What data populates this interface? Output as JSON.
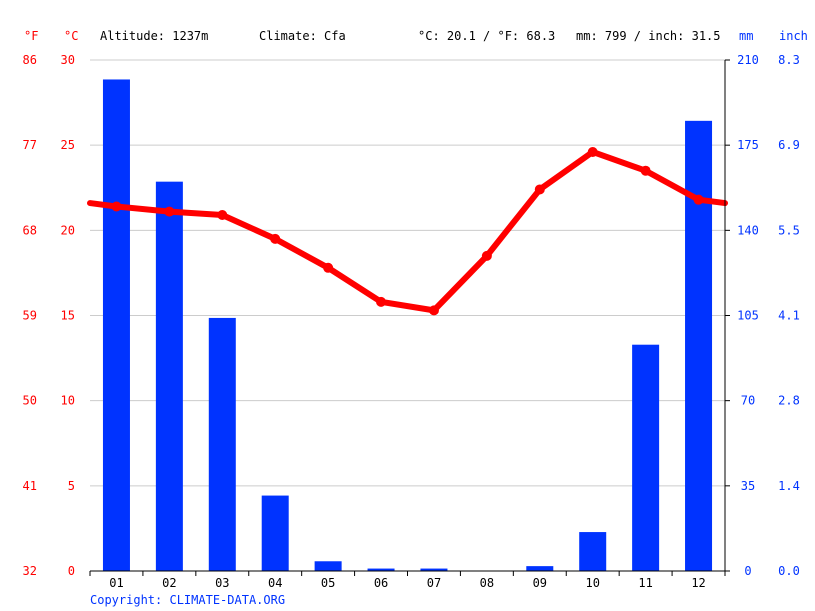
{
  "header": {
    "unit_f": "°F",
    "unit_c": "°C",
    "altitude": "Altitude: 1237m",
    "climate": "Climate: Cfa",
    "temp_avg": "°C: 20.1 / °F: 68.3",
    "precip_avg": "mm: 799 / inch: 31.5",
    "unit_mm": "mm",
    "unit_inch": "inch"
  },
  "footer": {
    "copyright": "Copyright: CLIMATE-DATA.ORG"
  },
  "colors": {
    "temperature": "#ff0000",
    "precipitation": "#0033ff",
    "grid": "#cccccc",
    "text": "#000000"
  },
  "chart_data": {
    "type": "bar",
    "categories": [
      "01",
      "02",
      "03",
      "04",
      "05",
      "06",
      "07",
      "08",
      "09",
      "10",
      "11",
      "12"
    ],
    "series": [
      {
        "type": "bar",
        "axis": "right",
        "values": [
          202,
          160,
          104,
          31,
          4,
          1,
          1,
          0,
          2,
          16,
          93,
          185
        ]
      },
      {
        "type": "line",
        "axis": "left",
        "values": [
          21.4,
          21.1,
          20.9,
          19.5,
          17.8,
          15.8,
          15.3,
          18.5,
          22.4,
          24.6,
          23.5,
          21.8
        ]
      }
    ],
    "axes": {
      "left_c": {
        "ticks": [
          "30",
          "25",
          "20",
          "15",
          "10",
          "5",
          "0"
        ],
        "ylim": [
          0,
          30
        ]
      },
      "left_f": {
        "ticks": [
          "86",
          "77",
          "68",
          "59",
          "50",
          "41",
          "32"
        ]
      },
      "right_mm": {
        "ticks": [
          "210",
          "175",
          "140",
          "105",
          "70",
          "35",
          "0"
        ],
        "ylim": [
          0,
          210
        ]
      },
      "right_inch": {
        "ticks": [
          "8.3",
          "6.9",
          "5.5",
          "4.1",
          "2.8",
          "1.4",
          "0.0"
        ]
      }
    },
    "grid": true
  }
}
